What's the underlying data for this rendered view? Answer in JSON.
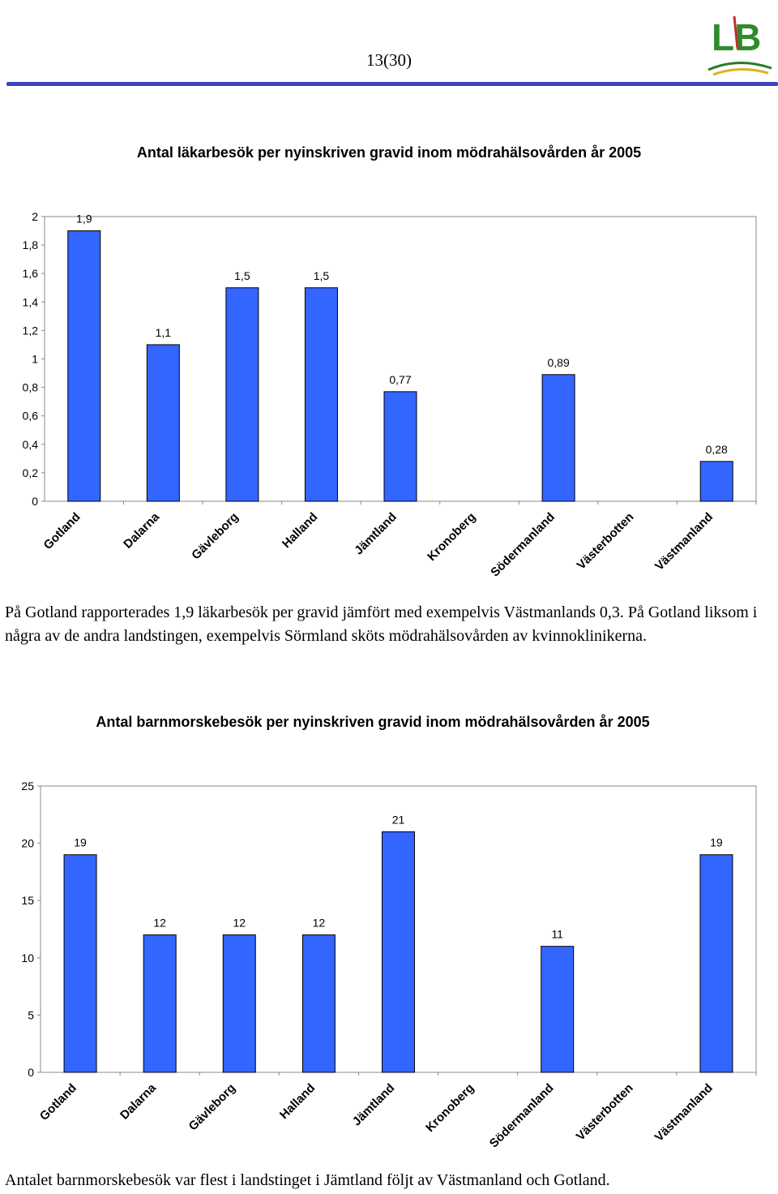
{
  "header": {
    "page_number": "13(30)"
  },
  "logo": {
    "text": "LB"
  },
  "paragraph1": "På Gotland rapporterades 1,9 läkarbesök per gravid jämfört med exempelvis Västmanlands 0,3. På Gotland liksom i några av de andra landstingen, exempelvis Sörmland sköts mödrahälsovården av kvinnoklinikerna.",
  "paragraph2": "Antalet barnmorskebesök var flest i landstinget i Jämtland följt av Västmanland och Gotland.",
  "colors": {
    "bar": "#3366ff",
    "header_rule": "#3d43b8"
  },
  "chart_data": [
    {
      "type": "bar",
      "title": "Antal läkarbesök per nyinskriven gravid inom mödrahälsovården år 2005",
      "categories": [
        "Gotland",
        "Dalarna",
        "Gävleborg",
        "Halland",
        "Jämtland",
        "Kronoberg",
        "Södermanland",
        "Västerbotten",
        "Västmanland"
      ],
      "values": [
        1.9,
        1.1,
        1.5,
        1.5,
        0.77,
        null,
        0.89,
        null,
        0.28
      ],
      "data_labels": [
        "1,9",
        "1,1",
        "1,5",
        "1,5",
        "0,77",
        "",
        "0,89",
        "",
        "0,28"
      ],
      "yticks": [
        "0",
        "0,2",
        "0,4",
        "0,6",
        "0,8",
        "1",
        "1,2",
        "1,4",
        "1,6",
        "1,8",
        "2"
      ],
      "ylim": [
        0,
        2
      ],
      "grid": false,
      "legend": "none"
    },
    {
      "type": "bar",
      "title": "Antal barnmorskebesök per nyinskriven gravid inom mödrahälsovården år 2005",
      "categories": [
        "Gotland",
        "Dalarna",
        "Gävleborg",
        "Halland",
        "Jämtland",
        "Kronoberg",
        "Södermanland",
        "Västerbotten",
        "Västmanland"
      ],
      "values": [
        19,
        12,
        12,
        12,
        21,
        null,
        11,
        null,
        19
      ],
      "data_labels": [
        "19",
        "12",
        "12",
        "12",
        "21",
        "",
        "11",
        "",
        "19"
      ],
      "yticks": [
        "0",
        "5",
        "10",
        "15",
        "20",
        "25"
      ],
      "ylim": [
        0,
        25
      ],
      "grid": false,
      "legend": "none"
    }
  ]
}
